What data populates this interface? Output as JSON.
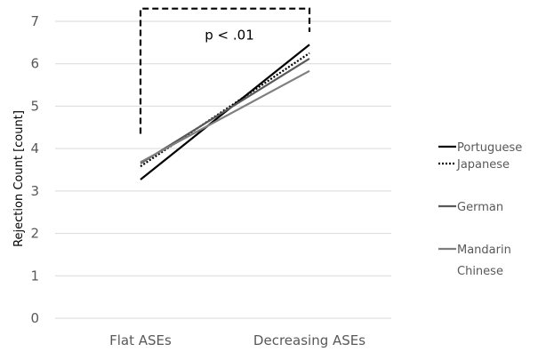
{
  "chart_data": {
    "type": "line",
    "categories": [
      "Flat ASEs",
      "Decreasing ASEs"
    ],
    "ylabel": "Rejection Count [count]",
    "xlabel": "",
    "ylim": [
      0,
      7
    ],
    "yticks": [
      0,
      1,
      2,
      3,
      4,
      5,
      6,
      7
    ],
    "grid": true,
    "legend_position": "right",
    "series": [
      {
        "name": "Portuguese",
        "values": [
          3.27,
          6.45
        ],
        "color": "#000000",
        "dash": "solid"
      },
      {
        "name": "Japanese",
        "values": [
          3.58,
          6.25
        ],
        "color": "#000000",
        "dash": "dotted"
      },
      {
        "name": "German",
        "values": [
          3.65,
          6.12
        ],
        "color": "#595959",
        "dash": "solid"
      },
      {
        "name": "Mandarin Chinese",
        "values": [
          3.68,
          5.83
        ],
        "color": "#7f7f7f",
        "dash": "solid"
      }
    ],
    "legend_labels": [
      [
        "Portuguese"
      ],
      [
        "Japanese"
      ],
      [
        "German"
      ],
      [
        "Mandarin",
        "Chinese"
      ]
    ],
    "annotation": {
      "text": "p < .01",
      "from_y": 4.35,
      "to_y": 6.75,
      "top_y": 7.3
    }
  }
}
